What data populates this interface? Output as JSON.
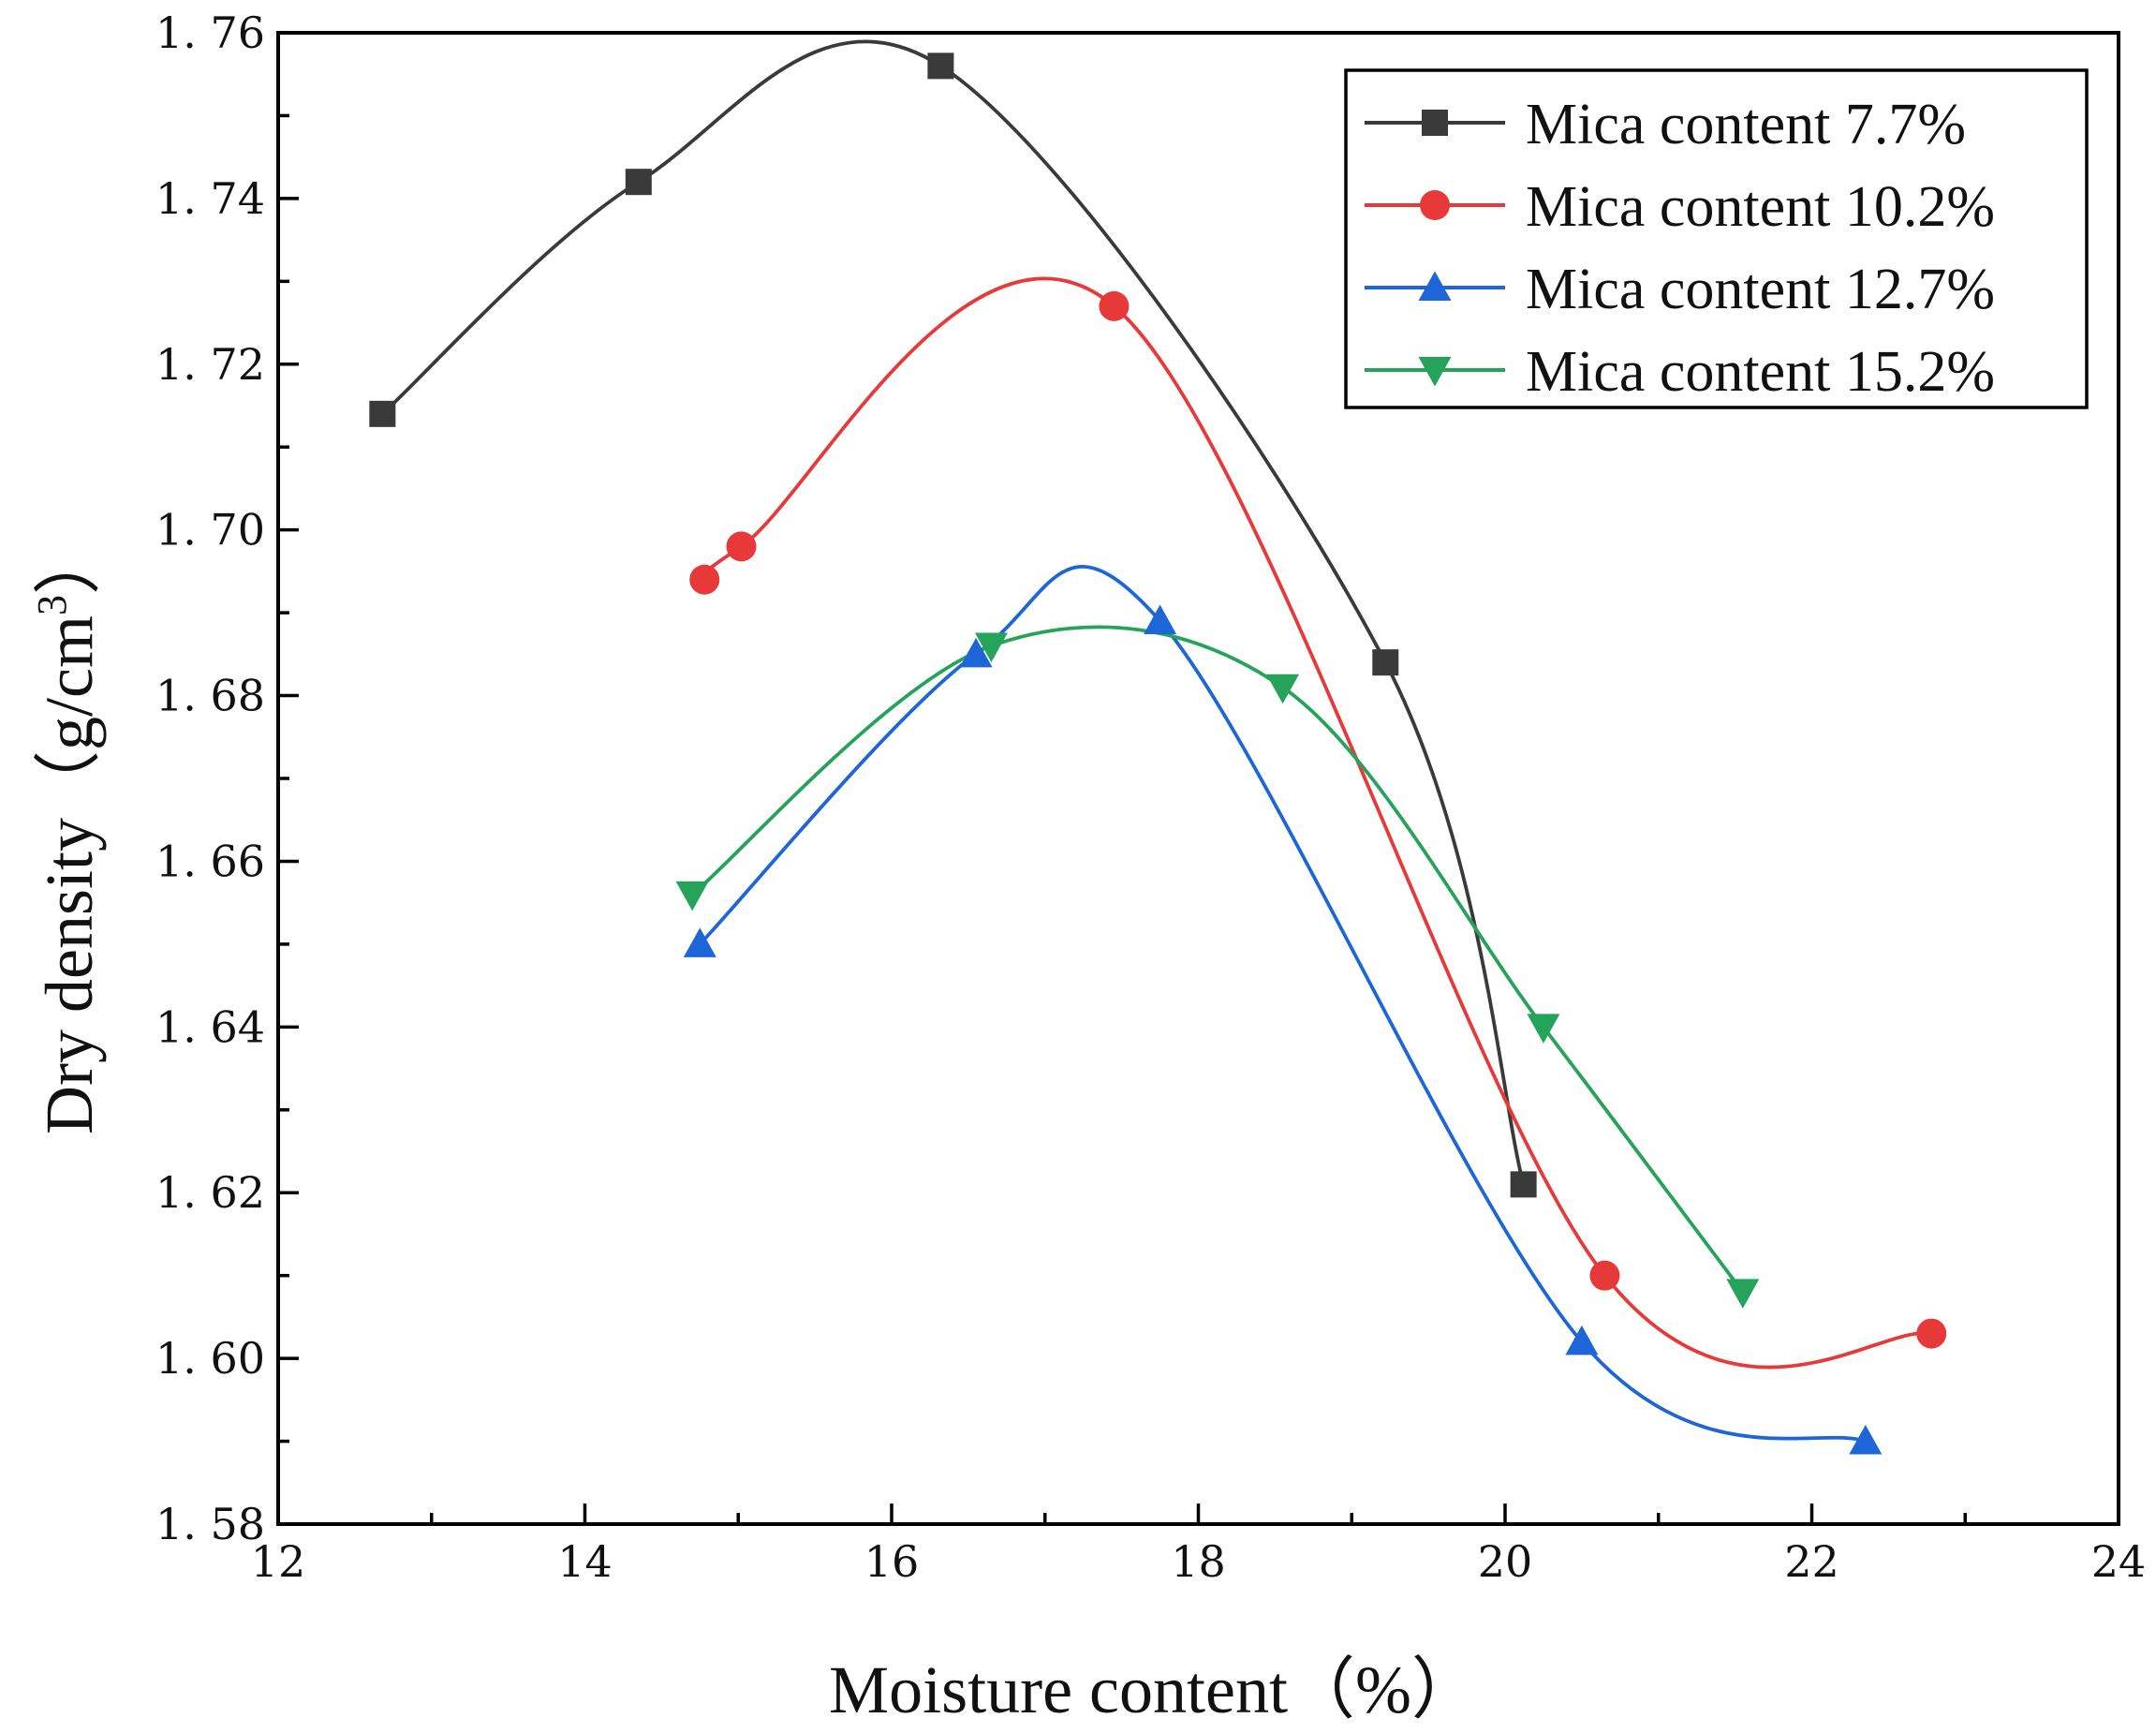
{
  "chart_data": {
    "type": "line",
    "xlabel": "Moisture content（%）",
    "ylabel_main": "Dry density（g/cm",
    "ylabel_sup": "3",
    "ylabel_end": "）",
    "xlim": [
      12,
      24
    ],
    "ylim": [
      1.58,
      1.76
    ],
    "x_ticks": [
      {
        "value": 12,
        "label": "12"
      },
      {
        "value": 14,
        "label": "14"
      },
      {
        "value": 16,
        "label": "16"
      },
      {
        "value": 18,
        "label": "18"
      },
      {
        "value": 20,
        "label": "20"
      },
      {
        "value": 22,
        "label": "22"
      },
      {
        "value": 24,
        "label": "24"
      }
    ],
    "y_ticks": [
      {
        "value": 1.58,
        "label": "1. 58"
      },
      {
        "value": 1.6,
        "label": "1. 60"
      },
      {
        "value": 1.62,
        "label": "1. 62"
      },
      {
        "value": 1.64,
        "label": "1. 64"
      },
      {
        "value": 1.66,
        "label": "1. 66"
      },
      {
        "value": 1.68,
        "label": "1. 68"
      },
      {
        "value": 1.7,
        "label": "1. 70"
      },
      {
        "value": 1.72,
        "label": "1. 72"
      },
      {
        "value": 1.74,
        "label": "1. 74"
      },
      {
        "value": 1.76,
        "label": "1. 76"
      }
    ],
    "legend_position": "top-right",
    "series": [
      {
        "name": "Mica content 7.7%",
        "color": "#3a3a3a",
        "marker": "square",
        "x": [
          12.68,
          14.35,
          16.32,
          19.22,
          20.12
        ],
        "y": [
          1.714,
          1.742,
          1.756,
          1.684,
          1.621
        ]
      },
      {
        "name": "Mica content 10.2%",
        "color": "#e8393a",
        "marker": "circle",
        "x": [
          14.78,
          15.02,
          17.45,
          20.65,
          22.78
        ],
        "y": [
          1.694,
          1.698,
          1.727,
          1.61,
          1.603
        ]
      },
      {
        "name": "Mica content 12.7%",
        "color": "#1e66d8",
        "marker": "triangle-up",
        "x": [
          14.75,
          16.55,
          17.75,
          20.5,
          22.35
        ],
        "y": [
          1.65,
          1.685,
          1.689,
          1.602,
          1.59
        ]
      },
      {
        "name": "Mica content 15.2%",
        "color": "#26a35a",
        "marker": "triangle-down",
        "x": [
          14.7,
          16.65,
          18.55,
          20.25,
          21.55
        ],
        "y": [
          1.656,
          1.686,
          1.681,
          1.64,
          1.608
        ]
      }
    ]
  }
}
